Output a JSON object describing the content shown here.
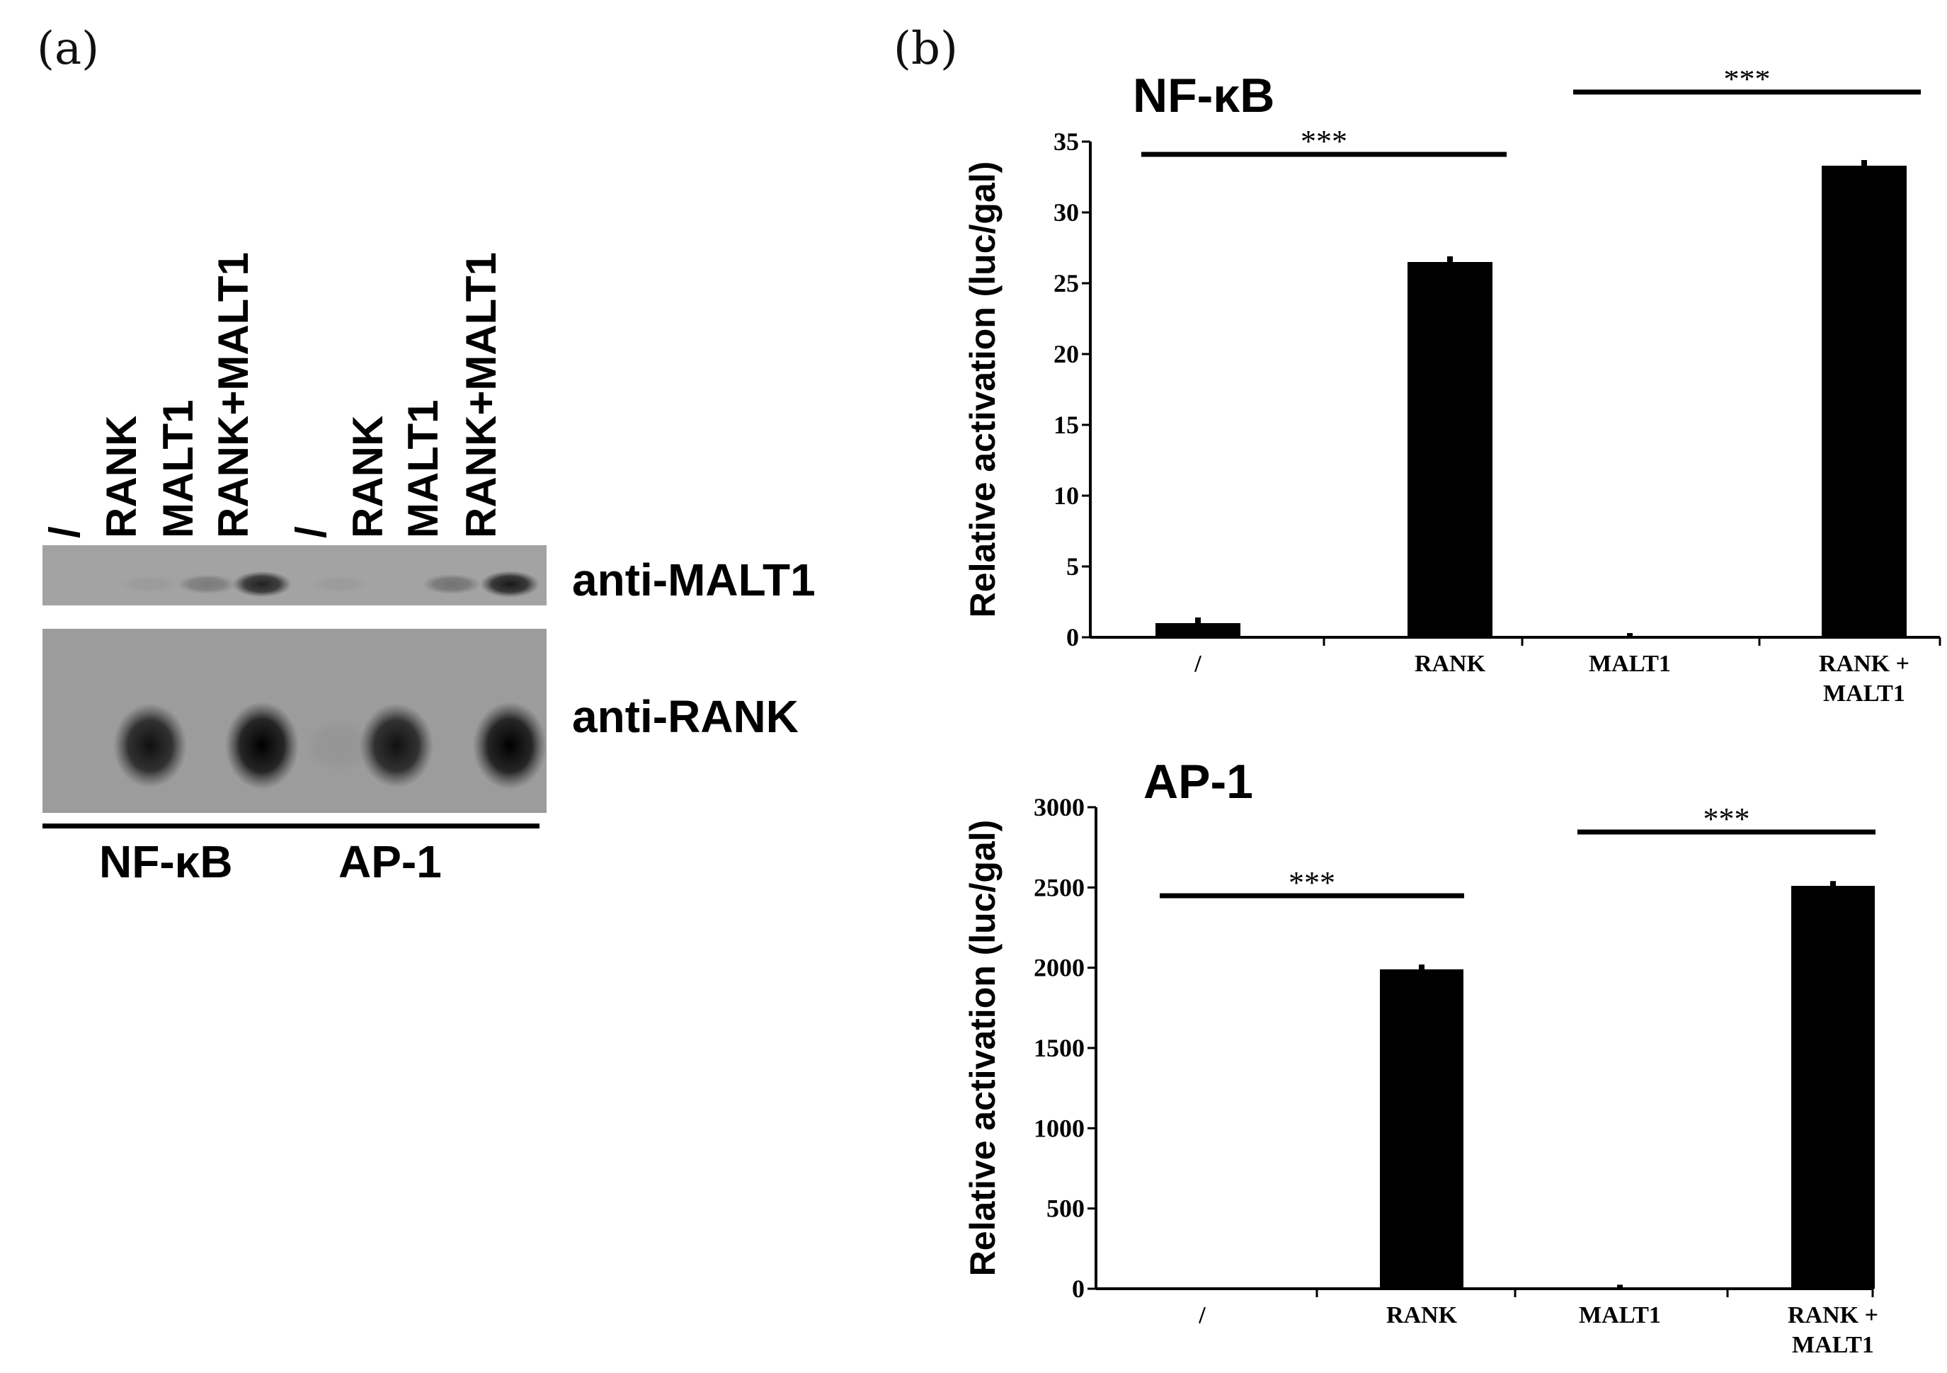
{
  "panel_a": {
    "label": "(a)",
    "lanes": [
      "/",
      "RANK",
      "MALT1",
      "RANK+MALT1",
      "/",
      "RANK",
      "MALT1",
      "RANK+MALT1"
    ],
    "blots": [
      "anti-MALT1",
      "anti-RANK"
    ],
    "groups": [
      "NF-κB",
      "AP-1"
    ],
    "band_intensity": {
      "anti-MALT1": [
        0.0,
        0.05,
        0.25,
        0.8,
        0.05,
        0.0,
        0.3,
        0.85
      ],
      "anti-RANK": [
        0.0,
        0.9,
        0.0,
        1.0,
        0.05,
        0.9,
        0.0,
        1.0
      ]
    }
  },
  "panel_b": {
    "label": "(b)"
  },
  "chart_data": [
    {
      "type": "bar",
      "title": "NF-κB",
      "categories": [
        "/",
        "RANK",
        "MALT1",
        "RANK +\nMALT1"
      ],
      "values": [
        1,
        26.5,
        0,
        33.3
      ],
      "errors": [
        0.4,
        0.4,
        0.3,
        0.4
      ],
      "ylabel": "Relative activation (luc/gal)",
      "ylim": [
        0,
        35
      ],
      "yticks": [
        0,
        5,
        10,
        15,
        20,
        25,
        30,
        35
      ],
      "color": "#000000",
      "annotations": [
        {
          "from": 0,
          "to": 1,
          "text": "***"
        },
        {
          "from": 2,
          "to": 3,
          "text": "***"
        }
      ]
    },
    {
      "type": "bar",
      "title": "AP-1",
      "categories": [
        "/",
        "RANK",
        "MALT1",
        "RANK +\nMALT1"
      ],
      "values": [
        0,
        1990,
        0,
        2510
      ],
      "errors": [
        0,
        30,
        25,
        30
      ],
      "ylabel": "Relative activation (luc/gal)",
      "ylim": [
        0,
        3000
      ],
      "yticks": [
        0,
        500,
        1000,
        1500,
        2000,
        2500,
        3000
      ],
      "color": "#000000",
      "annotations": [
        {
          "from": 0,
          "to": 1,
          "text": "***"
        },
        {
          "from": 2,
          "to": 3,
          "text": "***"
        }
      ]
    }
  ]
}
